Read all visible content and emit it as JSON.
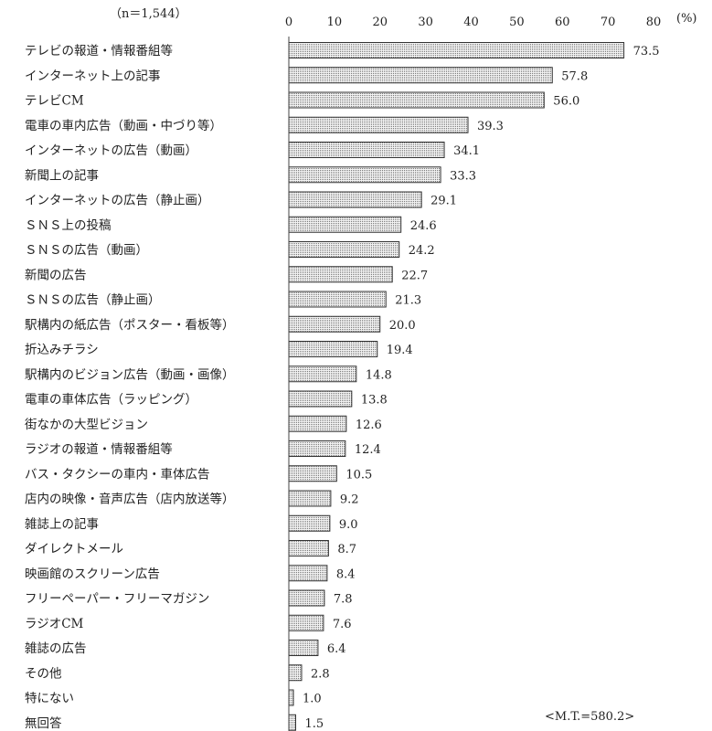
{
  "chart_data": {
    "type": "bar",
    "orientation": "horizontal",
    "sample_note": "（n＝1,544）",
    "unit": "(%)",
    "footnote": "<M.T.=580.2>",
    "xlim": [
      0,
      80
    ],
    "x_ticks": [
      "0",
      "10",
      "20",
      "30",
      "40",
      "50",
      "60",
      "70",
      "80"
    ],
    "grid": false,
    "bar_fill": "dotted-gray",
    "categories": [
      "テレビの報道・情報番組等",
      "インターネット上の記事",
      "テレビCM",
      "電車の車内広告（動画・中づり等）",
      "インターネットの広告（動画）",
      "新聞上の記事",
      "インターネットの広告（静止画）",
      "ＳＮＳ上の投稿",
      "ＳＮＳの広告（動画）",
      "新聞の広告",
      "ＳＮＳの広告（静止画）",
      "駅構内の紙広告（ポスター・看板等）",
      "折込みチラシ",
      "駅構内のビジョン広告（動画・画像）",
      "電車の車体広告（ラッピング）",
      "街なかの大型ビジョン",
      "ラジオの報道・情報番組等",
      "バス・タクシーの車内・車体広告",
      "店内の映像・音声広告（店内放送等）",
      "雑誌上の記事",
      "ダイレクトメール",
      "映画館のスクリーン広告",
      "フリーペーパー・フリーマガジン",
      "ラジオCM",
      "雑誌の広告",
      "その他",
      "特にない",
      "無回答"
    ],
    "values": [
      73.5,
      57.8,
      56.0,
      39.3,
      34.1,
      33.3,
      29.1,
      24.6,
      24.2,
      22.7,
      21.3,
      20.0,
      19.4,
      14.8,
      13.8,
      12.6,
      12.4,
      10.5,
      9.2,
      9.0,
      8.7,
      8.4,
      7.8,
      7.6,
      6.4,
      2.8,
      1.0,
      1.5
    ],
    "value_labels": [
      "73.5",
      "57.8",
      "56.0",
      "39.3",
      "34.1",
      "33.3",
      "29.1",
      "24.6",
      "24.2",
      "22.7",
      "21.3",
      "20.0",
      "19.4",
      "14.8",
      "13.8",
      "12.6",
      "12.4",
      "10.5",
      "9.2",
      "9.0",
      "8.7",
      "8.4",
      "7.8",
      "7.6",
      "6.4",
      "2.8",
      "1.0",
      "1.5"
    ]
  }
}
